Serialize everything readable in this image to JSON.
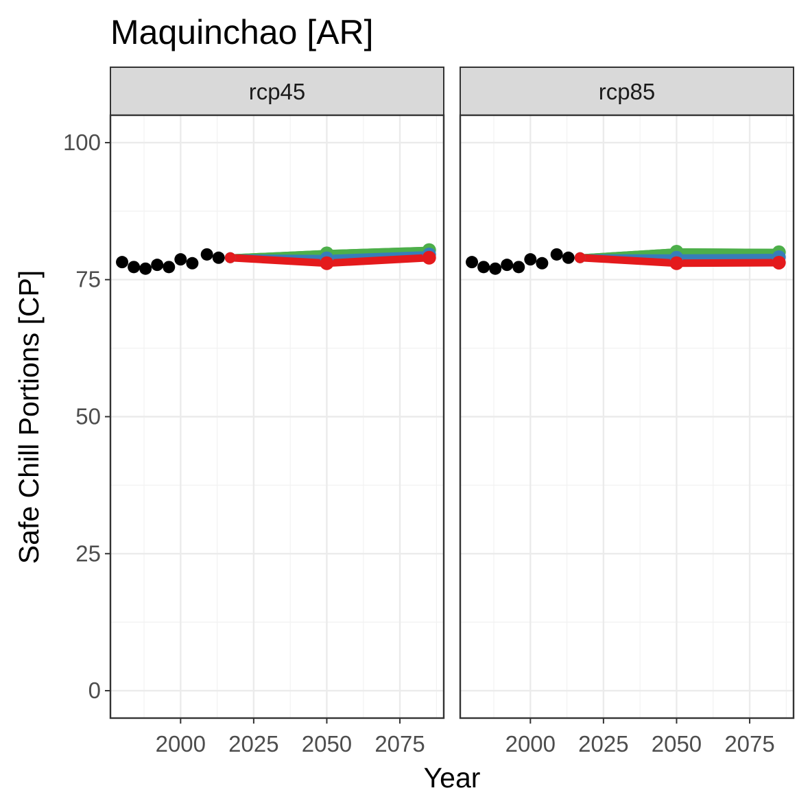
{
  "chart_data": {
    "type": "line",
    "title": "Maquinchao [AR]",
    "xlabel": "Year",
    "ylabel": "Safe Chill Portions [CP]",
    "xlim": [
      1976,
      2090
    ],
    "ylim": [
      -5,
      105
    ],
    "x_ticks": [
      2000,
      2025,
      2050,
      2075
    ],
    "y_ticks": [
      0,
      25,
      50,
      75,
      100
    ],
    "grid": true,
    "colors": {
      "historic": "#000000",
      "red": "#e41a1c",
      "blue": "#377eb8",
      "green": "#4daf4a",
      "panel_border": "#333333",
      "strip_fill": "#d9d9d9",
      "grid_major": "#ebebeb",
      "grid_minor": "#f2f2f2"
    },
    "panels": [
      {
        "label": "rcp45",
        "historic": {
          "x": [
            1980,
            1984,
            1988,
            1992,
            1996,
            2000,
            2004,
            2009,
            2013
          ],
          "y": [
            78.2,
            77.3,
            77.0,
            77.7,
            77.3,
            78.7,
            78.0,
            79.6,
            79.0
          ]
        },
        "scenarios": {
          "x": [
            2017,
            2050,
            2085
          ],
          "green": [
            79.0,
            79.8,
            80.4
          ],
          "blue": [
            79.0,
            78.9,
            79.6
          ],
          "red": [
            79.0,
            78.0,
            79.0
          ]
        }
      },
      {
        "label": "rcp85",
        "historic": {
          "x": [
            1980,
            1984,
            1988,
            1992,
            1996,
            2000,
            2004,
            2009,
            2013
          ],
          "y": [
            78.2,
            77.3,
            77.0,
            77.7,
            77.3,
            78.7,
            78.0,
            79.6,
            79.0
          ]
        },
        "scenarios": {
          "x": [
            2017,
            2050,
            2085
          ],
          "green": [
            79.0,
            80.1,
            80.0
          ],
          "blue": [
            79.0,
            79.0,
            79.1
          ],
          "red": [
            79.0,
            78.0,
            78.1
          ]
        }
      }
    ]
  }
}
